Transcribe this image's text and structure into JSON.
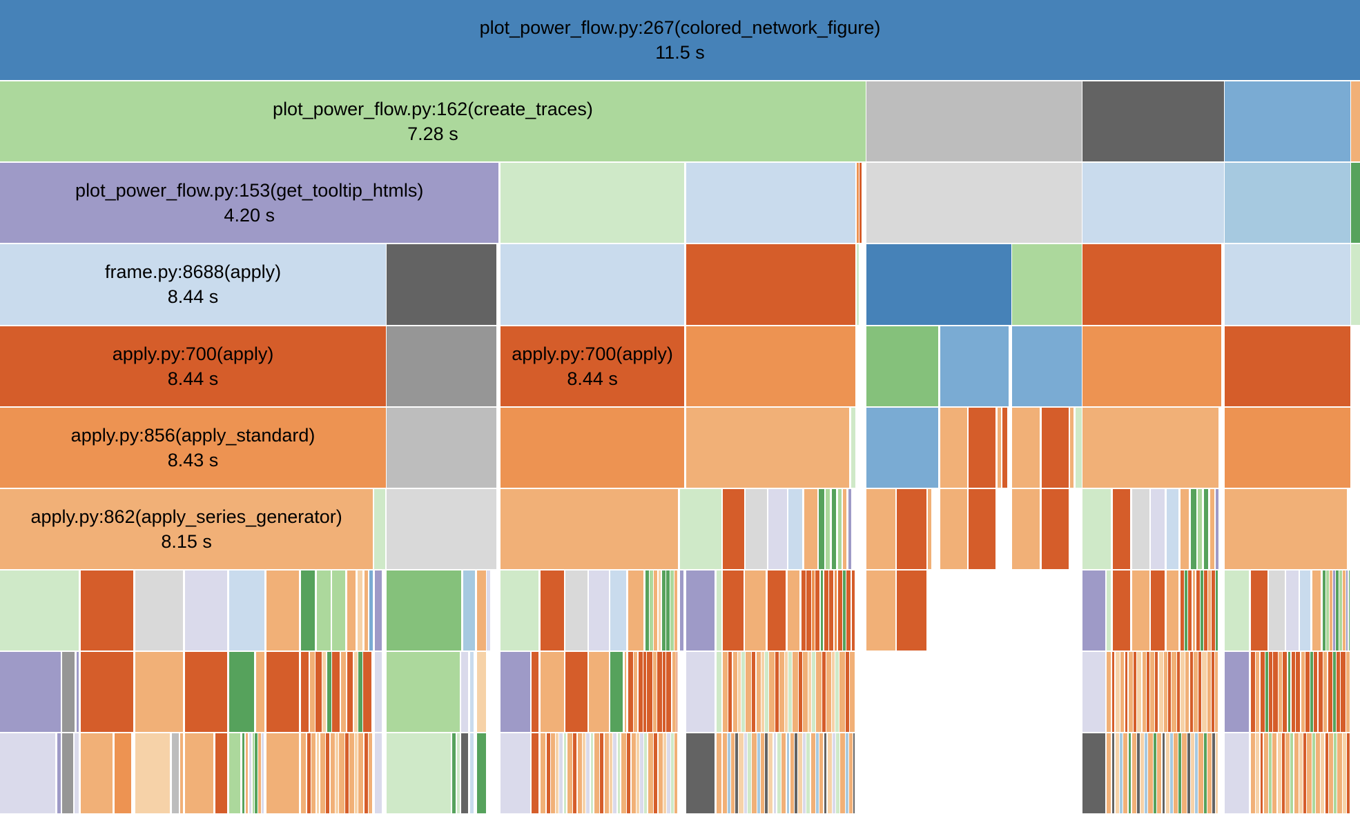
{
  "chart_data": {
    "type": "icicle",
    "title": "",
    "total_seconds": 11.5,
    "labeled_frames": [
      {
        "name": "plot_power_flow.py:267(colored_network_figure)",
        "time": "11.5 s",
        "depth": 0
      },
      {
        "name": "plot_power_flow.py:162(create_traces)",
        "time": "7.28 s",
        "depth": 1
      },
      {
        "name": "plot_power_flow.py:153(get_tooltip_htmls)",
        "time": "4.20 s",
        "depth": 2
      },
      {
        "name": "frame.py:8688(apply)",
        "time": "8.44 s",
        "depth": 3
      },
      {
        "name": "apply.py:700(apply)",
        "time": "8.44 s",
        "depth": 4
      },
      {
        "name": "apply.py:700(apply)",
        "time": "8.44 s",
        "depth": 4
      },
      {
        "name": "apply.py:856(apply_standard)",
        "time": "8.43 s",
        "depth": 5
      },
      {
        "name": "apply.py:862(apply_series_generator)",
        "time": "8.15 s",
        "depth": 6
      }
    ],
    "palette": {
      "blue": "#4682b8",
      "lightgreen": "#acd89c",
      "grey": "#bdbdbd",
      "darkgrey": "#636363",
      "midblue": "#7aabd3",
      "orangelight": "#f1b077",
      "purple": "#9e9ac7",
      "paleblue": "#c9dbed",
      "palegreen": "#cfe9c8",
      "lightgrey": "#d9d9d9",
      "orange": "#d55d2a",
      "midgrey": "#969696",
      "orangemid": "#ed9352",
      "green": "#85c17b",
      "darkgreen": "#56a25c",
      "lavender": "#dadaeb",
      "peach": "#f6d2a8",
      "skyblue": "#a6c9e0"
    }
  }
}
